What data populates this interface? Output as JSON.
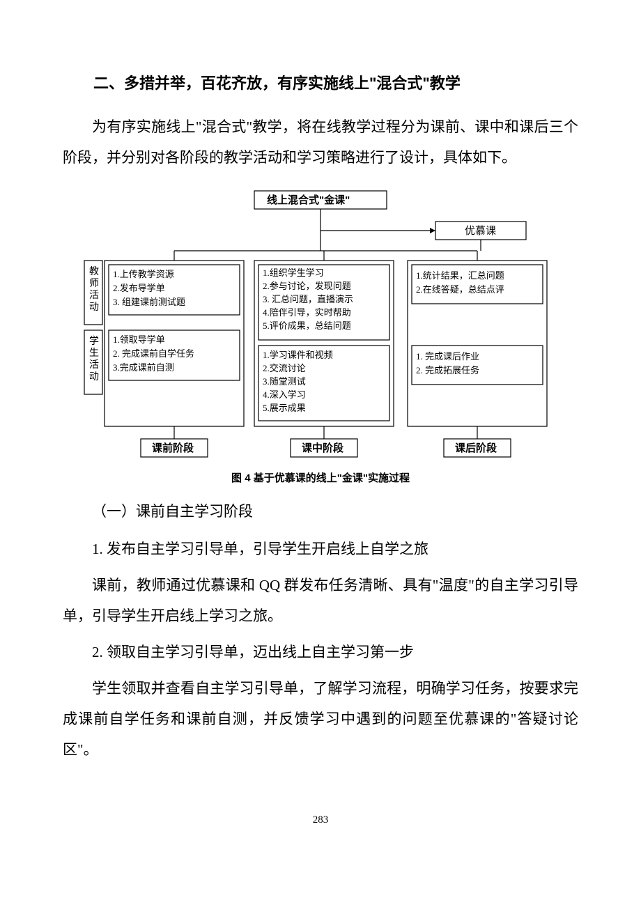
{
  "heading2": "二、多措并举，百花齐放，有序实施线上\"混合式\"教学",
  "para1": "为有序实施线上\"混合式\"教学，将在线教学过程分为课前、课中和课后三个阶段，并分别对各阶段的教学活动和学习策略进行了设计，具体如下。",
  "diagram": {
    "colors": {
      "line": "#000000",
      "fill": "#ffffff",
      "text": "#000000"
    },
    "top_box": "线上混合式\"金课\"",
    "sub_right": "优慕课",
    "left_vert1": "教师活动",
    "left_vert2": "学生活动",
    "row1_col1": [
      "1.上传教学资源",
      "2.发布导学单",
      "3. 组建课前测试题"
    ],
    "row1_col2": [
      "1.组织学生学习",
      "2.参与讨论，发现问题",
      "3. 汇总问题，直播演示",
      "4.陪伴引导，实时帮助",
      "5.评价成果，总结问题"
    ],
    "row1_col3": [
      "1.统计结果，汇总问题",
      "2.在线答疑，总结点评"
    ],
    "row2_col1": [
      "1.领取导学单",
      "2. 完成课前自学任务",
      "3.完成课前自测"
    ],
    "row2_col2": [
      "1.学习课件和视频",
      "2.交流讨论",
      "3.随堂测试",
      "4.深入学习",
      "5.展示成果"
    ],
    "row2_col3": [
      "1. 完成课后作业",
      "2. 完成拓展任务"
    ],
    "phase1": "课前阶段",
    "phase2": "课中阶段",
    "phase3": "课后阶段",
    "font_size_title": 15,
    "font_size_body": 13,
    "font_size_phase": 15,
    "line_width": 1.2
  },
  "caption": "图 4  基于优慕课的线上\"金课\"实施过程",
  "sub_heading": "（一）课前自主学习阶段",
  "item1_title": "1. 发布自主学习引导单，引导学生开启线上自学之旅",
  "item1_body": "课前，教师通过优慕课和 QQ 群发布任务清晰、具有\"温度\"的自主学习引导单，引导学生开启线上学习之旅。",
  "item2_title": "2. 领取自主学习引导单，迈出线上自主学习第一步",
  "item2_body": "学生领取并查看自主学习引导单，了解学习流程，明确学习任务，按要求完成课前自学任务和课前自测，并反馈学习中遇到的问题至优慕课的\"答疑讨论区\"。",
  "page_number": "283"
}
